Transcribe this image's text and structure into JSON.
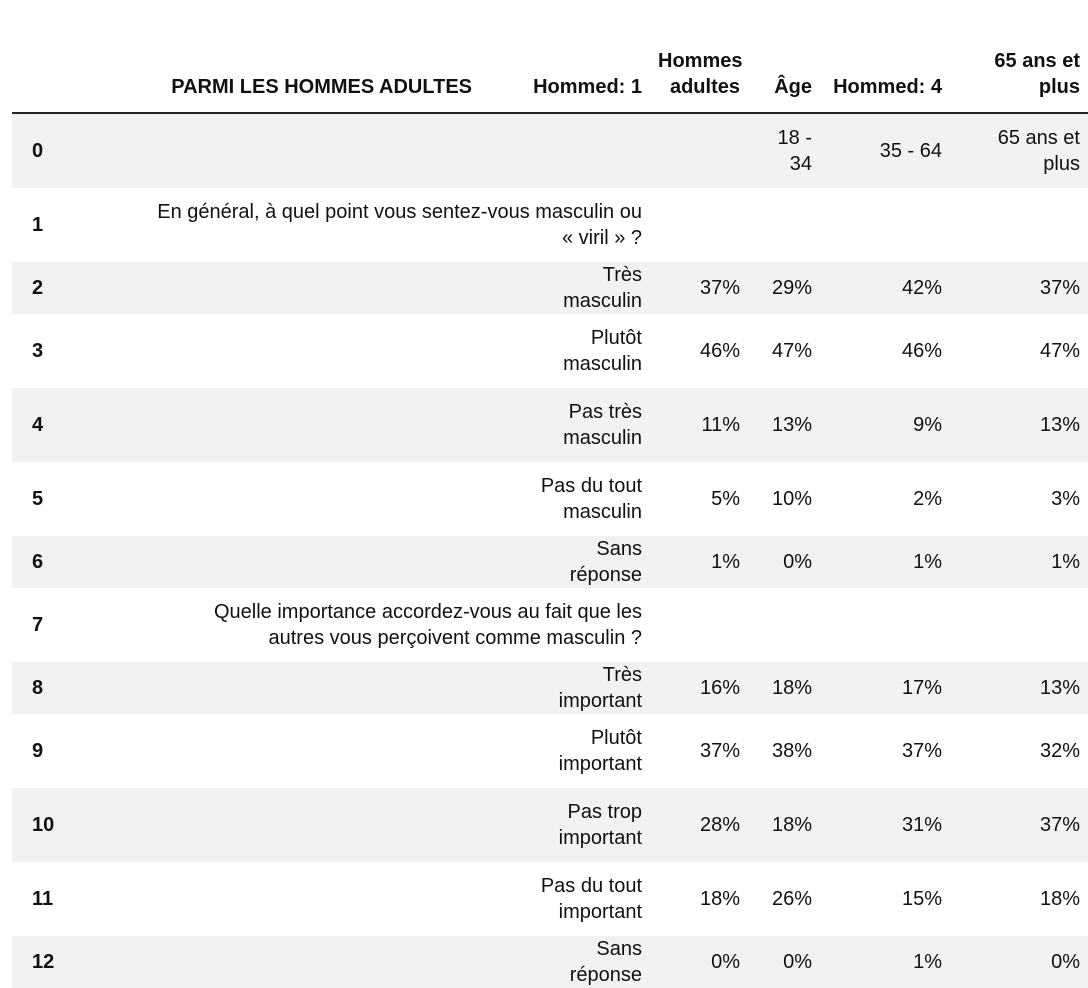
{
  "table": {
    "columns": [
      "PARMI LES HOMMES ADULTES",
      "Hommed: 1",
      "Hommes adultes",
      "Âge",
      "Hommed: 4",
      "65 ans et plus"
    ],
    "rows": [
      {
        "index": "0",
        "cells": [
          null,
          null,
          null,
          "18 - 34",
          "35 - 64",
          "65 ans et plus"
        ]
      },
      {
        "index": "1",
        "cells": [
          "En général, à quel point vous sentez-vous masculin ou « viril » ?",
          null,
          null,
          null,
          null,
          null
        ]
      },
      {
        "index": "2",
        "cells": [
          null,
          "Très masculin",
          "37%",
          "29%",
          "42%",
          "37%"
        ]
      },
      {
        "index": "3",
        "cells": [
          null,
          "Plutôt masculin",
          "46%",
          "47%",
          "46%",
          "47%"
        ]
      },
      {
        "index": "4",
        "cells": [
          null,
          "Pas très masculin",
          "11%",
          "13%",
          "9%",
          "13%"
        ]
      },
      {
        "index": "5",
        "cells": [
          null,
          "Pas du tout masculin",
          "5%",
          "10%",
          "2%",
          "3%"
        ]
      },
      {
        "index": "6",
        "cells": [
          null,
          "Sans réponse",
          "1%",
          "0%",
          "1%",
          "1%"
        ]
      },
      {
        "index": "7",
        "cells": [
          "Quelle importance accordez-vous au fait que les autres vous perçoivent comme masculin ?",
          null,
          null,
          null,
          null,
          null
        ]
      },
      {
        "index": "8",
        "cells": [
          null,
          "Très important",
          "16%",
          "18%",
          "17%",
          "13%"
        ]
      },
      {
        "index": "9",
        "cells": [
          null,
          "Plutôt important",
          "37%",
          "38%",
          "37%",
          "32%"
        ]
      },
      {
        "index": "10",
        "cells": [
          null,
          "Pas trop important",
          "28%",
          "18%",
          "31%",
          "37%"
        ]
      },
      {
        "index": "11",
        "cells": [
          null,
          "Pas du tout important",
          "18%",
          "26%",
          "15%",
          "18%"
        ]
      },
      {
        "index": "12",
        "cells": [
          null,
          "Sans réponse",
          "0%",
          "0%",
          "1%",
          "0%"
        ]
      }
    ]
  }
}
